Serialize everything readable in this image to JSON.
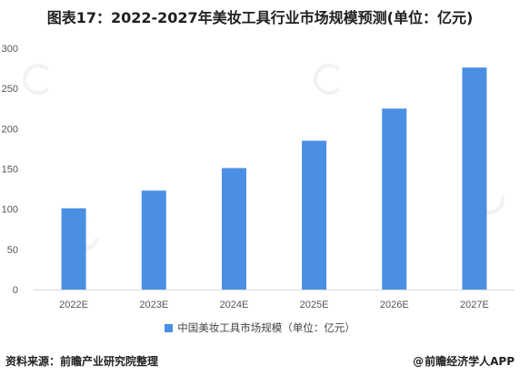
{
  "title": "图表17：2022-2027年美妆工具行业市场规模预测(单位：亿元)",
  "chart_data": {
    "type": "bar",
    "categories": [
      "2022E",
      "2023E",
      "2024E",
      "2025E",
      "2026E",
      "2027E"
    ],
    "series": [
      {
        "name": "中国美妆工具市场规模（单位：亿元）",
        "values": [
          101,
          123,
          151,
          185,
          225,
          276
        ]
      }
    ],
    "yticks": [
      0,
      50,
      100,
      150,
      200,
      250,
      300
    ],
    "ylim": [
      0,
      300
    ],
    "grid": false,
    "legend_position": "bottom",
    "bar_color": "#4a8fe4"
  },
  "legend": {
    "label": "中国美妆工具市场规模（单位：亿元）"
  },
  "footer": {
    "source": "资料来源：前瞻产业研究院整理",
    "brand": "前瞻经济学人APP"
  },
  "icons": {
    "brand": "at-icon",
    "watermark": "qianzhan-logo-icon"
  }
}
